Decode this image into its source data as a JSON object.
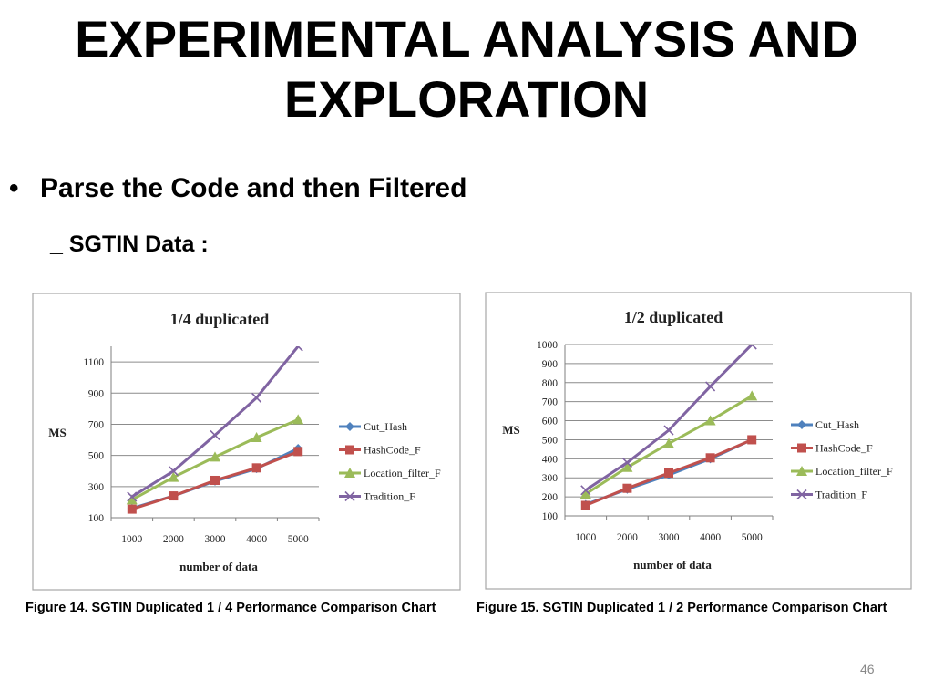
{
  "slide": {
    "title_line1": "EXPERIMENTAL ANALYSIS AND",
    "title_line2": "EXPLORATION",
    "bullet": "Parse the Code and then Filtered",
    "subheading": "_ SGTIN Data :",
    "page_number": "46"
  },
  "chart_data": [
    {
      "type": "line",
      "title": "1/4 duplicated",
      "xlabel": "number of data",
      "ylabel": "MS",
      "categories": [
        "1000",
        "2000",
        "3000",
        "4000",
        "5000"
      ],
      "yticks": [
        100,
        300,
        500,
        700,
        900,
        1100
      ],
      "ylim": [
        100,
        1200
      ],
      "series": [
        {
          "name": "Cut_Hash",
          "color": "#4F81BD",
          "marker": "diamond",
          "values": [
            160,
            240,
            335,
            415,
            545
          ]
        },
        {
          "name": "HashCode_F",
          "color": "#C0504D",
          "marker": "square",
          "values": [
            155,
            240,
            340,
            420,
            525
          ]
        },
        {
          "name": "Location_filter_F",
          "color": "#9BBB59",
          "marker": "triangle",
          "values": [
            215,
            360,
            490,
            615,
            730
          ]
        },
        {
          "name": "Tradition_F",
          "color": "#8064A2",
          "marker": "x",
          "values": [
            235,
            400,
            630,
            870,
            1200
          ]
        }
      ],
      "caption": "Figure 14. SGTIN Duplicated 1 / 4 Performance Comparison Chart"
    },
    {
      "type": "line",
      "title": "1/2 duplicated",
      "xlabel": "number of data",
      "ylabel": "MS",
      "categories": [
        "1000",
        "2000",
        "3000",
        "4000",
        "5000"
      ],
      "yticks": [
        100,
        200,
        300,
        400,
        500,
        600,
        700,
        800,
        900,
        1000
      ],
      "ylim": [
        100,
        1000
      ],
      "series": [
        {
          "name": "Cut_Hash",
          "color": "#4F81BD",
          "marker": "diamond",
          "values": [
            160,
            240,
            315,
            400,
            500
          ]
        },
        {
          "name": "HashCode_F",
          "color": "#C0504D",
          "marker": "square",
          "values": [
            155,
            245,
            325,
            405,
            500
          ]
        },
        {
          "name": "Location_filter_F",
          "color": "#9BBB59",
          "marker": "triangle",
          "values": [
            215,
            355,
            480,
            600,
            730
          ]
        },
        {
          "name": "Tradition_F",
          "color": "#8064A2",
          "marker": "x",
          "values": [
            235,
            380,
            550,
            780,
            1000
          ]
        }
      ],
      "caption": "Figure 15. SGTIN Duplicated 1 / 2 Performance Comparison Chart"
    }
  ]
}
